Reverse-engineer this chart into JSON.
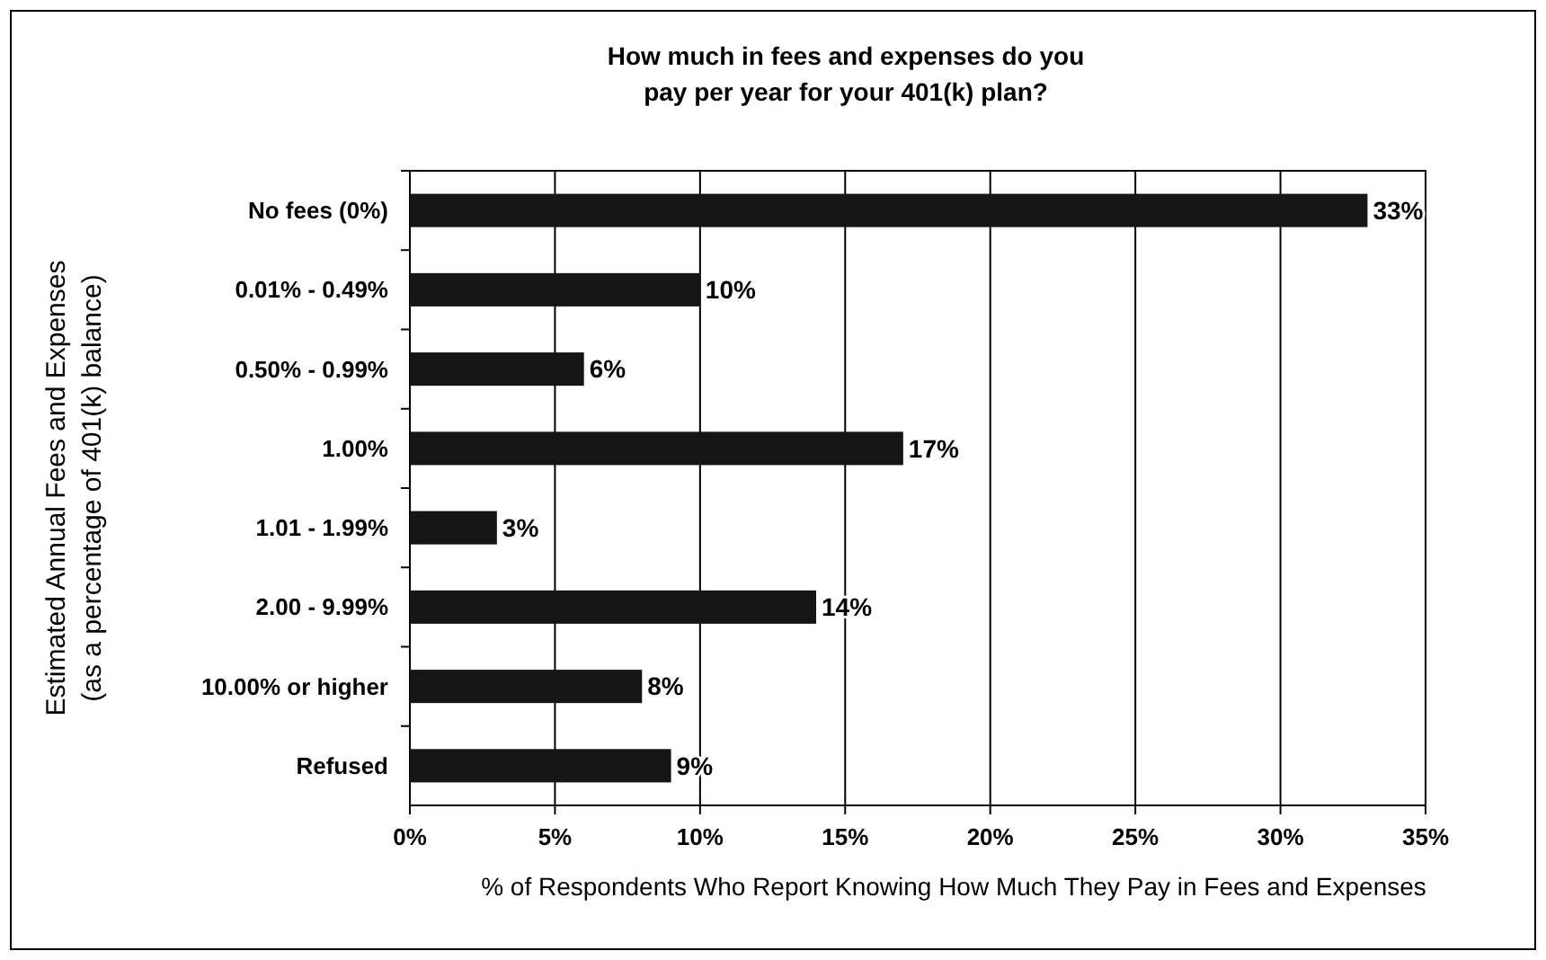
{
  "chart_data": {
    "type": "bar",
    "orientation": "horizontal",
    "title": "How much in fees and expenses do you\npay per year for your 401(k) plan?",
    "xlabel": "% of Respondents Who Report Knowing How Much They Pay in Fees and Expenses",
    "ylabel": "Estimated Annual Fees and Expenses\n(as a percentage of 401(k) balance)",
    "categories": [
      "No fees (0%)",
      "0.01% - 0.49%",
      "0.50% - 0.99%",
      "1.00%",
      "1.01 - 1.99%",
      "2.00 - 9.99%",
      "10.00% or higher",
      "Refused"
    ],
    "values": [
      33,
      10,
      6,
      17,
      3,
      14,
      8,
      9
    ],
    "value_labels": [
      "33%",
      "10%",
      "6%",
      "17%",
      "3%",
      "14%",
      "8%",
      "9%"
    ],
    "color": "#151515",
    "xlim": [
      0,
      35
    ],
    "xticks": [
      {
        "value": 0,
        "label": "0%"
      },
      {
        "value": 5,
        "label": "5%"
      },
      {
        "value": 10,
        "label": "10%"
      },
      {
        "value": 15,
        "label": "15%"
      },
      {
        "value": 20,
        "label": "20%"
      },
      {
        "value": 25,
        "label": "25%"
      },
      {
        "value": 30,
        "label": "30%"
      },
      {
        "value": 35,
        "label": "35%"
      }
    ],
    "grid": "x"
  }
}
